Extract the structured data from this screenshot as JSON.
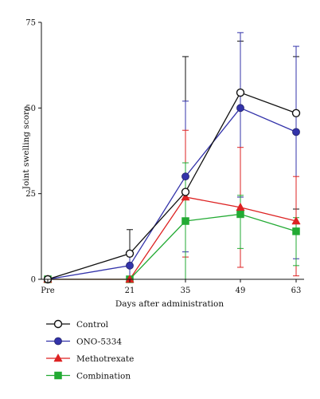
{
  "chart_data": {
    "type": "line",
    "xlabel": "Days after administration",
    "ylabel": "Joint swelling score",
    "categories": [
      "Pre",
      "21",
      "35",
      "49",
      "63"
    ],
    "ylim": [
      0,
      75
    ],
    "yticks": [
      "0",
      "25",
      "50",
      "75"
    ],
    "grid": false,
    "legend_position": "bottom-left",
    "series": [
      {
        "name": "Control",
        "color": "#111111",
        "marker": "circle-open",
        "values": [
          0,
          7.5,
          25.5,
          54.5,
          48.5
        ],
        "err_upper": [
          0,
          14.5,
          65,
          69.5,
          65
        ],
        "err_lower": [
          0,
          0,
          17,
          24,
          20.5
        ]
      },
      {
        "name": "ONO-5334",
        "color": "#3333aa",
        "marker": "circle-filled",
        "values": [
          0,
          4,
          30,
          50,
          43
        ],
        "err_upper": [
          0,
          8,
          52,
          72,
          68
        ],
        "err_lower": [
          0,
          0,
          8,
          24,
          6
        ]
      },
      {
        "name": "Methotrexate",
        "color": "#dd2222",
        "marker": "triangle",
        "values": [
          0,
          0,
          24,
          21,
          17
        ],
        "err_upper": [
          0,
          0,
          43.5,
          38.5,
          30
        ],
        "err_lower": [
          0,
          0,
          6.5,
          3.5,
          1
        ]
      },
      {
        "name": "Combination",
        "color": "#22aa33",
        "marker": "square",
        "values": [
          0,
          0,
          17,
          19,
          14
        ],
        "err_upper": [
          0,
          0,
          34,
          24.5,
          18
        ],
        "err_lower": [
          0,
          0,
          0,
          9,
          4
        ]
      }
    ]
  }
}
